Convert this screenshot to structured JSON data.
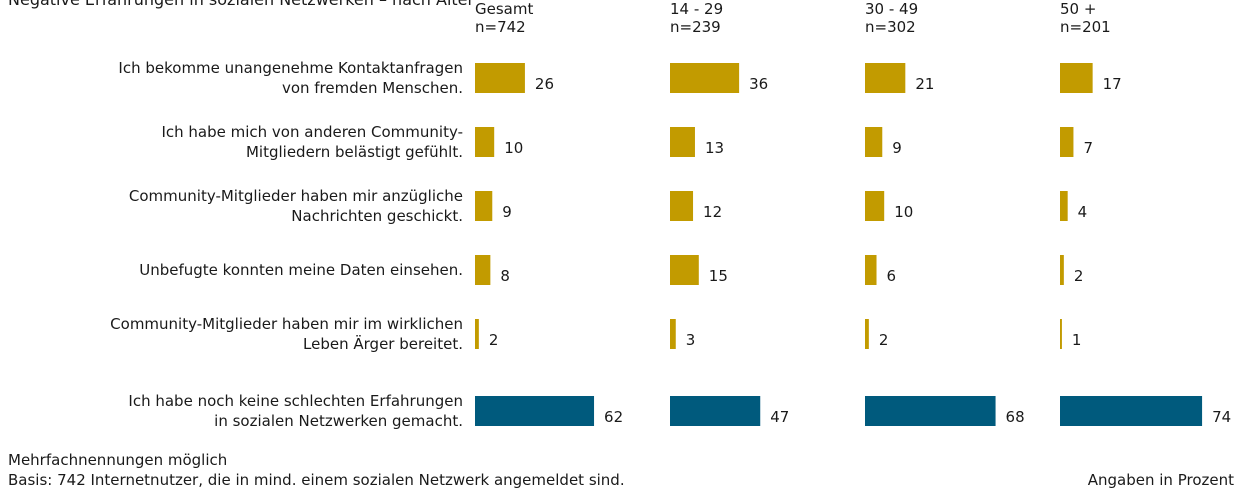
{
  "chart_data": {
    "type": "bar",
    "title": "Negative Erfahrungen in sozialen Netzwerken – nach Alter",
    "categories": [
      [
        "Ich bekomme unangenehme Kontaktanfragen",
        "von fremden Menschen."
      ],
      [
        "Ich habe mich von anderen Community-",
        "Mitgliedern belästigt gefühlt."
      ],
      [
        "Community-Mitglieder haben mir anzügliche",
        "Nachrichten geschickt."
      ],
      [
        "Unbefugte konnten meine Daten einsehen."
      ],
      [
        "Community-Mitglieder haben mir im wirklichen",
        "Leben Ärger bereitet."
      ],
      [
        "Ich habe noch keine schlechten Erfahrungen",
        "in sozialen Netzwerken gemacht."
      ]
    ],
    "colors": [
      "#c29b00",
      "#c29b00",
      "#c29b00",
      "#c29b00",
      "#c29b00",
      "#005a7d"
    ],
    "series": [
      {
        "name": "Gesamt",
        "sample": "n=742",
        "values": [
          26,
          10,
          9,
          8,
          2,
          62
        ]
      },
      {
        "name": "14 - 29",
        "sample": "n=239",
        "values": [
          36,
          13,
          12,
          15,
          3,
          47
        ]
      },
      {
        "name": "30 - 49",
        "sample": "n=302",
        "values": [
          21,
          9,
          10,
          6,
          2,
          68
        ]
      },
      {
        "name": "50 +",
        "sample": "n=201",
        "values": [
          17,
          7,
          4,
          2,
          1,
          74
        ]
      }
    ],
    "notes": [
      "Mehrfachnennungen möglich",
      "Basis: 742 Internetnutzer, die in mind. einem sozialen Netzwerk angemeldet sind."
    ],
    "unit_note": "Angaben in Prozent"
  }
}
